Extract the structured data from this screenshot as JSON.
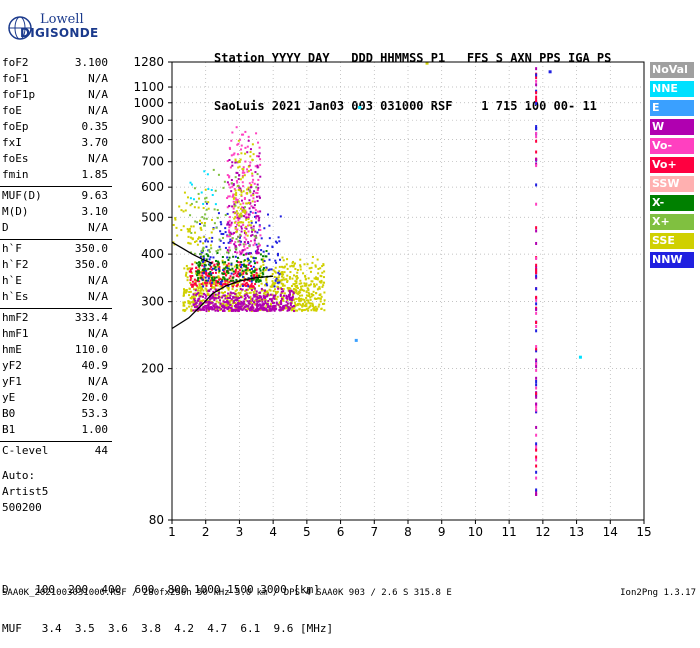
{
  "logo": {
    "line1": "Lowell",
    "line2": "DIGISONDE"
  },
  "header": {
    "labels": "Station YYYY DAY   DDD HHMMSS P1   FFS S AXN PPS IGA PS",
    "values": "SaoLuis 2021 Jan03 003 031000 RSF    1 715 100 00- 11"
  },
  "params": [
    {
      "name": "foF2",
      "value": "3.100"
    },
    {
      "name": "foF1",
      "value": "N/A"
    },
    {
      "name": "foF1p",
      "value": "N/A"
    },
    {
      "name": "foE",
      "value": "N/A"
    },
    {
      "name": "foEp",
      "value": "0.35"
    },
    {
      "name": "fxI",
      "value": "3.70"
    },
    {
      "name": "foEs",
      "value": "N/A"
    },
    {
      "name": "fmin",
      "value": "1.85"
    },
    {
      "name": "MUF(D)",
      "value": "9.63"
    },
    {
      "name": "M(D)",
      "value": "3.10"
    },
    {
      "name": "D",
      "value": "N/A"
    },
    {
      "name": "h`F",
      "value": "350.0"
    },
    {
      "name": "h`F2",
      "value": "350.0"
    },
    {
      "name": "h`E",
      "value": "N/A"
    },
    {
      "name": "h`Es",
      "value": "N/A"
    },
    {
      "name": "hmF2",
      "value": "333.4"
    },
    {
      "name": "hmF1",
      "value": "N/A"
    },
    {
      "name": "hmE",
      "value": "110.0"
    },
    {
      "name": "yF2",
      "value": "40.9"
    },
    {
      "name": "yF1",
      "value": "N/A"
    },
    {
      "name": "yE",
      "value": "20.0"
    },
    {
      "name": "B0",
      "value": "53.3"
    },
    {
      "name": "B1",
      "value": "1.00"
    },
    {
      "name": "C-level",
      "value": "44"
    }
  ],
  "auto": {
    "line1": "Auto:",
    "line2": "Artist5",
    "line3": "500200"
  },
  "legend": [
    {
      "label": "NoVal",
      "color": "#a0a0a0"
    },
    {
      "label": "NNE",
      "color": "#00e0ff"
    },
    {
      "label": "E",
      "color": "#3aa0ff"
    },
    {
      "label": "W",
      "color": "#b000b0"
    },
    {
      "label": "Vo-",
      "color": "#ff40c0"
    },
    {
      "label": "Vo+",
      "color": "#ff0040"
    },
    {
      "label": "SSW",
      "color": "#ffb0b0"
    },
    {
      "label": "X-",
      "color": "#008000"
    },
    {
      "label": "X+",
      "color": "#80c040"
    },
    {
      "label": "SSE",
      "color": "#d0d000"
    },
    {
      "label": "NNW",
      "color": "#2020e0"
    }
  ],
  "muf_table": {
    "d_row": "D    100  200  400  600  800 1000 1500 3000 [km]",
    "muf_row": "MUF   3.4  3.5  3.6  3.8  4.2  4.7  6.1  9.6 [MHz]"
  },
  "footer": {
    "info": "SAA0K_2021003031000.RSF / 280fx256h 50 kHz 5.0 km / DPS-4 SAA0K 903 / 2.6 S 315.8 E",
    "version": "Ion2Png 1.3.17"
  },
  "chart_data": {
    "type": "scatter",
    "xlabel": "",
    "ylabel": "",
    "xlim": [
      1,
      15
    ],
    "ylim": [
      80,
      1280
    ],
    "yscale": "log",
    "xticks": [
      1,
      2,
      3,
      4,
      5,
      6,
      7,
      8,
      9,
      10,
      11,
      12,
      13,
      14,
      15
    ],
    "yticks": [
      80,
      200,
      300,
      400,
      500,
      600,
      700,
      800,
      900,
      1000,
      1100,
      1280
    ],
    "grid": true,
    "colors": {
      "SSE": "#d0d000",
      "W": "#b000b0",
      "Vo+": "#ff0040",
      "X-": "#008000",
      "NNW": "#2020e0",
      "NNE": "#00e0ff",
      "X+": "#80c040",
      "Vo-": "#ff40c0"
    },
    "trace": {
      "name": "",
      "x": [
        1.0,
        1.5,
        1.9,
        2.2,
        2.6,
        3.0,
        3.5,
        4.0
      ],
      "y": [
        255,
        272,
        295,
        315,
        330,
        340,
        347,
        350
      ]
    },
    "trace2": {
      "name": "",
      "x": [
        1.0,
        1.3,
        1.6,
        1.9,
        2.2
      ],
      "y": [
        430,
        415,
        400,
        388,
        378
      ]
    },
    "vertical_column": {
      "x": 11.8,
      "y_min": 90,
      "y_max": 1270,
      "color": "#ff0040"
    },
    "isolated_points": [
      {
        "x": 6.45,
        "y": 238,
        "color": "#3aa0ff"
      },
      {
        "x": 6.55,
        "y": 975,
        "color": "#00e0ff"
      },
      {
        "x": 13.1,
        "y": 215,
        "color": "#00e0ff"
      },
      {
        "x": 12.2,
        "y": 1210,
        "color": "#2020e0"
      },
      {
        "x": 8.55,
        "y": 1275,
        "color": "#d0d000"
      }
    ],
    "clusters": [
      {
        "x0": 1.3,
        "x1": 5.5,
        "y0": 285,
        "y1": 400,
        "color": "#d0d000",
        "n": 900
      },
      {
        "x0": 1.6,
        "x1": 4.6,
        "y0": 285,
        "y1": 330,
        "color": "#b000b0",
        "n": 450
      },
      {
        "x0": 1.5,
        "x1": 3.5,
        "y0": 330,
        "y1": 395,
        "color": "#ff0040",
        "n": 180
      },
      {
        "x0": 1.7,
        "x1": 3.8,
        "y0": 340,
        "y1": 420,
        "color": "#008000",
        "n": 160
      },
      {
        "x0": 1.8,
        "x1": 4.2,
        "y0": 330,
        "y1": 560,
        "color": "#2020e0",
        "n": 140
      },
      {
        "x0": 2.6,
        "x1": 3.6,
        "y0": 400,
        "y1": 880,
        "color": "#ff40c0",
        "n": 170
      },
      {
        "x0": 2.6,
        "x1": 3.6,
        "y0": 400,
        "y1": 820,
        "color": "#b000b0",
        "n": 120
      },
      {
        "x0": 2.8,
        "x1": 3.4,
        "y0": 450,
        "y1": 850,
        "color": "#d0d000",
        "n": 90
      },
      {
        "x0": 1.5,
        "x1": 3.6,
        "y0": 400,
        "y1": 700,
        "color": "#80c040",
        "n": 70
      },
      {
        "x0": 1.0,
        "x1": 2.2,
        "y0": 420,
        "y1": 600,
        "color": "#d0d000",
        "n": 60
      },
      {
        "x0": 1.5,
        "x1": 2.3,
        "y0": 540,
        "y1": 700,
        "color": "#00e0ff",
        "n": 12
      }
    ]
  }
}
